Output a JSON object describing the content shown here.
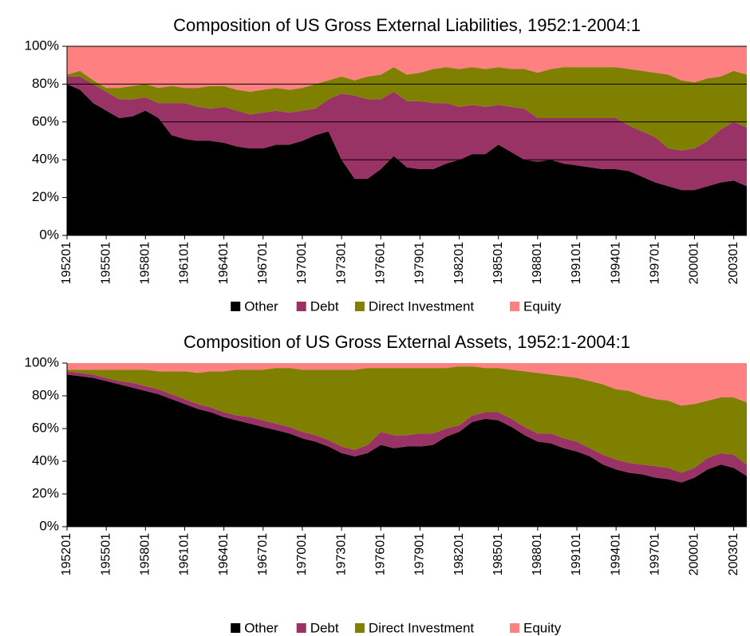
{
  "chart_data": [
    {
      "type": "area",
      "stacked": true,
      "title": "Composition of US Gross External Liabilities, 1952:1-2004:1",
      "categories": [
        "195201",
        null,
        null,
        "195501",
        null,
        null,
        "195801",
        null,
        null,
        "196101",
        null,
        null,
        "196401",
        null,
        null,
        "196701",
        null,
        null,
        "197001",
        null,
        null,
        "197301",
        null,
        null,
        "197601",
        null,
        null,
        "197901",
        null,
        null,
        "198201",
        null,
        null,
        "198501",
        null,
        null,
        "198801",
        null,
        null,
        "199101",
        null,
        null,
        "199401",
        null,
        null,
        "199701",
        null,
        null,
        "200001",
        null,
        null,
        "200301",
        null
      ],
      "series": [
        {
          "name": "Other",
          "color": "#000000",
          "values": [
            80,
            77,
            70,
            66,
            62,
            63,
            66,
            62,
            53,
            51,
            50,
            50,
            49,
            47,
            46,
            46,
            48,
            48,
            50,
            53,
            55,
            40,
            30,
            30,
            35,
            42,
            36,
            35,
            35,
            38,
            40,
            43,
            43,
            48,
            44,
            40,
            39,
            40,
            38,
            37,
            36,
            35,
            35,
            34,
            31,
            28,
            26,
            24,
            24,
            26,
            28,
            29,
            26
          ]
        },
        {
          "name": "Debt",
          "color": "#993366",
          "values": [
            4,
            7,
            10,
            10,
            10,
            9,
            7,
            8,
            17,
            19,
            18,
            17,
            19,
            19,
            18,
            19,
            18,
            17,
            16,
            14,
            17,
            35,
            44,
            42,
            37,
            34,
            35,
            36,
            35,
            32,
            28,
            26,
            25,
            21,
            24,
            27,
            23,
            22,
            24,
            25,
            26,
            27,
            27,
            24,
            24,
            24,
            20,
            21,
            22,
            24,
            28,
            31,
            31
          ]
        },
        {
          "name": "Direct Investment",
          "color": "#808000",
          "values": [
            1,
            3,
            2,
            2,
            6,
            7,
            7,
            8,
            9,
            8,
            10,
            12,
            11,
            11,
            12,
            12,
            12,
            12,
            12,
            13,
            10,
            9,
            8,
            12,
            13,
            13,
            14,
            15,
            18,
            19,
            20,
            20,
            20,
            20,
            20,
            21,
            24,
            26,
            27,
            27,
            27,
            27,
            27,
            30,
            32,
            34,
            39,
            37,
            35,
            33,
            28,
            27,
            28
          ]
        },
        {
          "name": "Equity",
          "color": "#ff8080",
          "values": [
            15,
            13,
            18,
            22,
            22,
            21,
            20,
            22,
            21,
            22,
            22,
            21,
            21,
            23,
            24,
            23,
            22,
            23,
            22,
            20,
            18,
            16,
            18,
            16,
            15,
            11,
            15,
            14,
            12,
            11,
            12,
            11,
            12,
            11,
            12,
            12,
            14,
            12,
            11,
            11,
            11,
            11,
            11,
            12,
            13,
            14,
            15,
            18,
            19,
            17,
            16,
            13,
            15
          ]
        }
      ],
      "ylim": [
        0,
        100
      ],
      "yticks": [
        {
          "value": 0,
          "label": "0%"
        },
        {
          "value": 20,
          "label": "20%"
        },
        {
          "value": 40,
          "label": "40%"
        },
        {
          "value": 60,
          "label": "60%"
        },
        {
          "value": 80,
          "label": "80%"
        },
        {
          "value": 100,
          "label": "100%"
        }
      ],
      "grid": true,
      "legend": "bottom"
    },
    {
      "type": "area",
      "stacked": true,
      "title": "Composition of US Gross External Assets, 1952:1-2004:1",
      "categories": [
        "195201",
        null,
        null,
        "195501",
        null,
        null,
        "195801",
        null,
        null,
        "196101",
        null,
        null,
        "196401",
        null,
        null,
        "196701",
        null,
        null,
        "197001",
        null,
        null,
        "197301",
        null,
        null,
        "197601",
        null,
        null,
        "197901",
        null,
        null,
        "198201",
        null,
        null,
        "198501",
        null,
        null,
        "198801",
        null,
        null,
        "199101",
        null,
        null,
        "199401",
        null,
        null,
        "199701",
        null,
        null,
        "200001",
        null,
        null,
        "200301",
        null
      ],
      "series": [
        {
          "name": "Other",
          "color": "#000000",
          "values": [
            93,
            92,
            91,
            89,
            87,
            85,
            83,
            81,
            78,
            75,
            72,
            70,
            67,
            65,
            63,
            61,
            59,
            57,
            54,
            52,
            49,
            45,
            43,
            45,
            50,
            48,
            49,
            49,
            50,
            55,
            58,
            64,
            66,
            65,
            61,
            56,
            52,
            51,
            48,
            46,
            43,
            38,
            35,
            33,
            32,
            30,
            29,
            27,
            30,
            35,
            38,
            36,
            31
          ]
        },
        {
          "name": "Debt",
          "color": "#993366",
          "values": [
            2,
            2,
            2,
            2,
            2,
            3,
            3,
            3,
            3,
            3,
            3,
            3,
            3,
            3,
            4,
            4,
            4,
            4,
            4,
            4,
            4,
            4,
            4,
            5,
            8,
            8,
            7,
            8,
            7,
            5,
            4,
            4,
            4,
            5,
            5,
            5,
            5,
            6,
            6,
            6,
            5,
            6,
            6,
            6,
            6,
            7,
            7,
            6,
            6,
            7,
            7,
            8,
            7
          ]
        },
        {
          "name": "Direct Investment",
          "color": "#808000",
          "values": [
            1,
            2,
            3,
            5,
            7,
            8,
            10,
            11,
            14,
            17,
            19,
            22,
            25,
            28,
            29,
            31,
            34,
            36,
            38,
            40,
            43,
            47,
            49,
            47,
            39,
            41,
            41,
            40,
            40,
            37,
            36,
            30,
            27,
            27,
            30,
            34,
            37,
            36,
            38,
            39,
            41,
            43,
            43,
            44,
            42,
            41,
            41,
            41,
            39,
            35,
            34,
            35,
            38
          ]
        },
        {
          "name": "Equity",
          "color": "#ff8080",
          "values": [
            4,
            4,
            4,
            4,
            4,
            4,
            4,
            5,
            5,
            5,
            6,
            5,
            5,
            4,
            4,
            4,
            3,
            3,
            4,
            4,
            4,
            4,
            4,
            3,
            3,
            3,
            3,
            3,
            3,
            3,
            2,
            2,
            3,
            3,
            4,
            5,
            6,
            7,
            8,
            9,
            11,
            13,
            16,
            17,
            20,
            22,
            23,
            26,
            25,
            23,
            21,
            21,
            24
          ]
        }
      ],
      "ylim": [
        0,
        100
      ],
      "yticks": [
        {
          "value": 0,
          "label": "0%"
        },
        {
          "value": 20,
          "label": "20%"
        },
        {
          "value": 40,
          "label": "40%"
        },
        {
          "value": 60,
          "label": "60%"
        },
        {
          "value": 80,
          "label": "80%"
        },
        {
          "value": 100,
          "label": "100%"
        }
      ],
      "grid": false,
      "legend": "bottom"
    }
  ]
}
